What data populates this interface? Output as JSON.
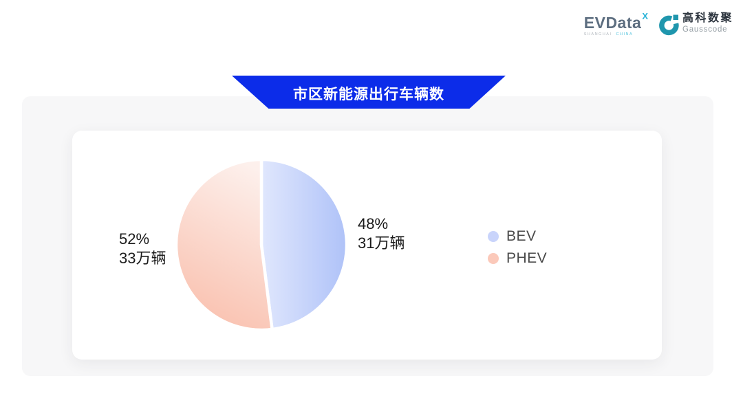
{
  "header": {
    "evdata_logo": {
      "text": "EVData",
      "superscript": "X",
      "tagline_left": "SHANGHAI",
      "tagline_right": "CHINA"
    },
    "gausscode_logo": {
      "cn": "高科数聚",
      "en": "Gausscode",
      "mark_color": "#1f96ad"
    }
  },
  "banner": {
    "label": "市区新能源出行车辆数",
    "bg": "#0c2ce9"
  },
  "chart_data": {
    "type": "pie",
    "title": "市区新能源出行车辆数",
    "unit": "万辆",
    "start_angle_deg": -90,
    "clockwise": true,
    "legend_position": "right",
    "slices": [
      {
        "name": "BEV",
        "pct": 48,
        "value_wan": 31,
        "pct_label": "48%",
        "count_label": "31万辆",
        "gradient": [
          "#e0e7fd",
          "#afc2f8"
        ],
        "gradient_dir": [
          0,
          0.5,
          1,
          0.5
        ],
        "legend_color": "#c9d4fb"
      },
      {
        "name": "PHEV",
        "pct": 52,
        "value_wan": 33,
        "pct_label": "52%",
        "count_label": "33万辆",
        "gradient": [
          "#fdf0ec",
          "#f9c0ae"
        ],
        "gradient_dir": [
          0.65,
          0,
          0.35,
          1
        ],
        "legend_color": "#fbc9ba"
      }
    ]
  }
}
